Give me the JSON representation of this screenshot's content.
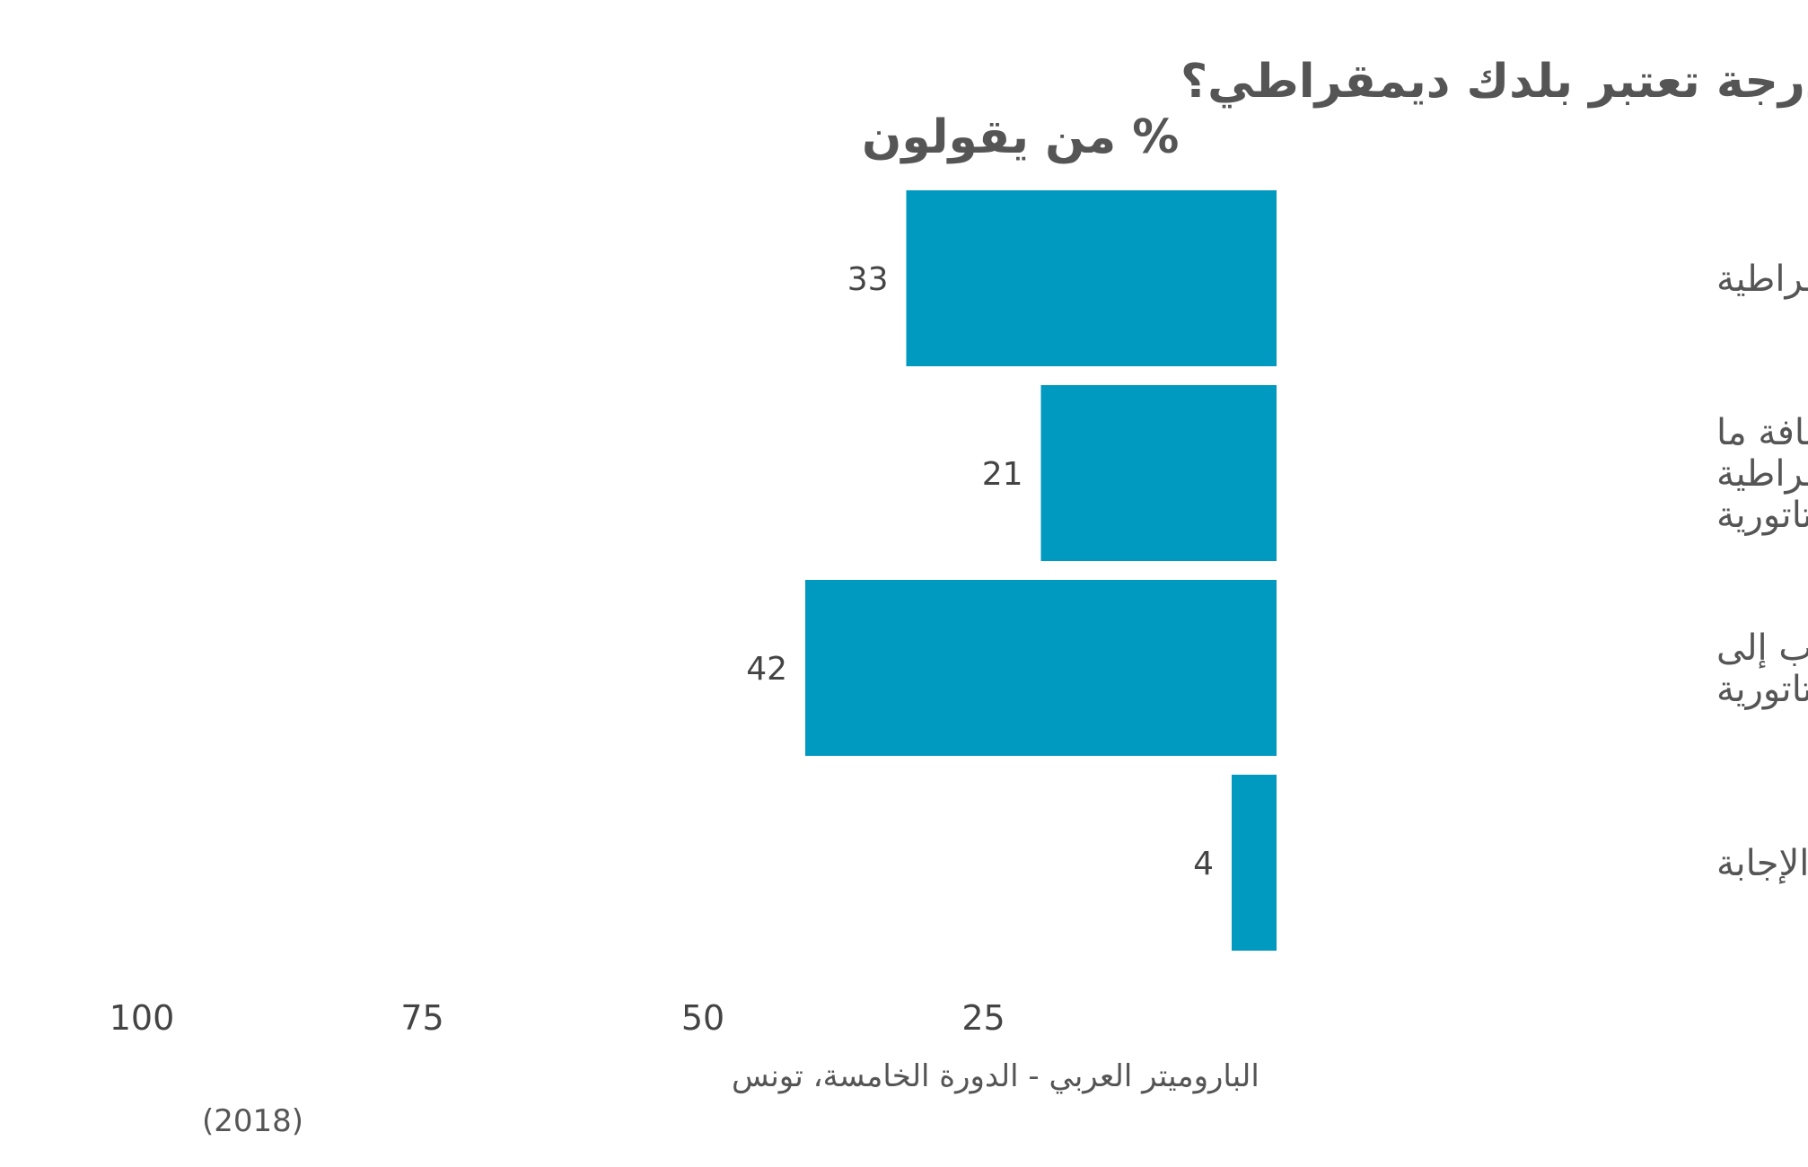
{
  "chart_data": {
    "type": "bar",
    "orientation": "horizontal",
    "direction": "rtl",
    "title": "برأيك، إلى أي درجة تعتبر بلدك ديمقراطي؟",
    "subtitle": "% من يقولون",
    "categories": [
      [
        "أقرب إلى الديمقراطية"
      ],
      [
        "نفس المسافة ما",
        "بين الديمقراطية",
        "والديكتاتورية"
      ],
      [
        "أقرب إلى",
        "الديكتاتورية"
      ],
      [
        "لا أعرف/رفض الإجابة"
      ]
    ],
    "values": [
      33,
      21,
      42,
      4
    ],
    "value_labels": [
      "33",
      "21",
      "42",
      "4"
    ],
    "x_ticks": [
      25,
      50,
      75,
      100
    ],
    "x_tick_labels": [
      "25",
      "50",
      "75",
      "100"
    ],
    "xlim": [
      0,
      100
    ],
    "grid": false,
    "bar_color": "#0099c0",
    "source": [
      "البارومیتر العربي - الدورة الخامسة، تونس",
      "(2018)"
    ]
  }
}
